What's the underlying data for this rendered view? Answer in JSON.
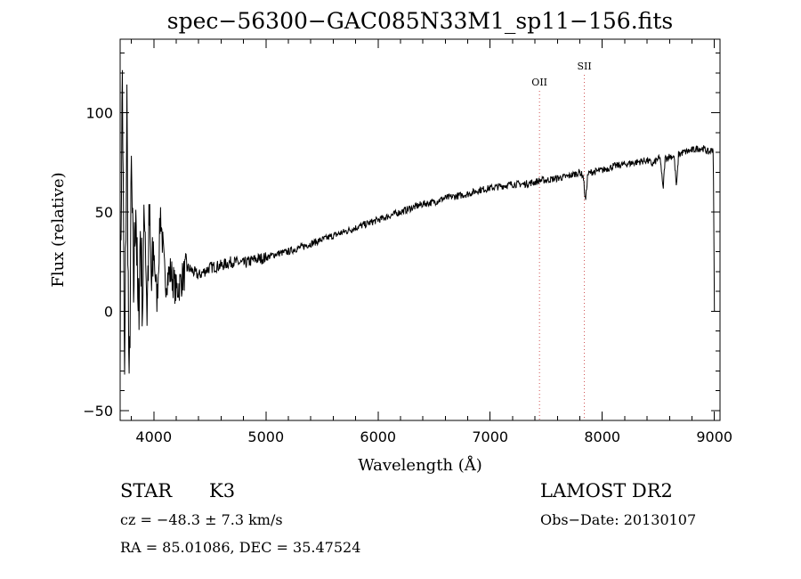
{
  "chart_data": {
    "type": "line",
    "title": "spec−56300−GAC085N33M1_sp11−156.fits",
    "xlabel": "Wavelength (Å)",
    "ylabel": "Flux (relative)",
    "xlim": [
      3700,
      9050
    ],
    "ylim": [
      -55,
      137
    ],
    "x_ticks": [
      4000,
      5000,
      6000,
      7000,
      8000,
      9000
    ],
    "x_tick_labels": [
      "4000",
      "5000",
      "6000",
      "7000",
      "8000",
      "9000"
    ],
    "y_ticks": [
      -50,
      0,
      50,
      100
    ],
    "y_tick_labels": [
      "−50",
      "0",
      "50",
      "100"
    ],
    "grid": false,
    "series": [
      {
        "x": [
          3700,
          3720,
          3740,
          3760,
          3780,
          3800,
          3820,
          3840,
          3860,
          3880,
          3900,
          3920,
          3940,
          3960,
          3980,
          4000,
          4030,
          4060,
          4100,
          4150,
          4200,
          4300,
          4400,
          4500,
          4600,
          4700,
          4800,
          4900,
          5000,
          5100,
          5200,
          5300,
          5400,
          5500,
          5600,
          5700,
          5800,
          5900,
          6000,
          6100,
          6200,
          6300,
          6400,
          6500,
          6600,
          6700,
          6800,
          6900,
          7000,
          7100,
          7200,
          7300,
          7400,
          7450,
          7500,
          7600,
          7700,
          7750,
          7800,
          7830,
          7850,
          7870,
          7900,
          8000,
          8100,
          8200,
          8300,
          8400,
          8450,
          8500,
          8520,
          8542,
          8560,
          8600,
          8640,
          8662,
          8680,
          8720,
          8800,
          8850,
          8900,
          8950,
          8990,
          9000,
          9010
        ],
        "values": [
          -5,
          120,
          -40,
          105,
          -50,
          70,
          10,
          60,
          -10,
          40,
          5,
          55,
          0,
          45,
          10,
          30,
          5,
          50,
          15,
          20,
          10,
          22,
          18,
          22,
          23,
          25,
          24,
          26,
          27,
          29,
          30,
          32,
          34,
          36,
          38,
          40,
          42,
          44,
          46,
          48,
          50,
          52,
          54,
          55,
          57,
          58,
          59,
          61,
          62,
          63,
          64,
          64,
          65,
          66,
          66,
          67,
          68,
          69,
          70,
          68,
          55,
          69,
          70,
          71,
          73,
          74,
          75,
          76,
          74,
          77,
          76,
          61,
          77,
          78,
          78,
          62,
          79,
          80,
          81,
          82,
          82,
          80,
          82,
          0,
          0
        ]
      }
    ],
    "annotations": [
      {
        "label": "OII",
        "x": 7440
      },
      {
        "label": "SII",
        "x": 7840
      }
    ]
  },
  "info": {
    "object_class": "STAR",
    "subclass": "K3",
    "survey": "LAMOST DR2",
    "cz": "cz = −48.3 ± 7.3 km/s",
    "obs_date": "Obs−Date: 20130107",
    "coords": "RA =  85.01086, DEC =  35.47524"
  },
  "colors": {
    "spectrum": "#000000",
    "line_marker": "#d05050",
    "background": "#ffffff"
  }
}
